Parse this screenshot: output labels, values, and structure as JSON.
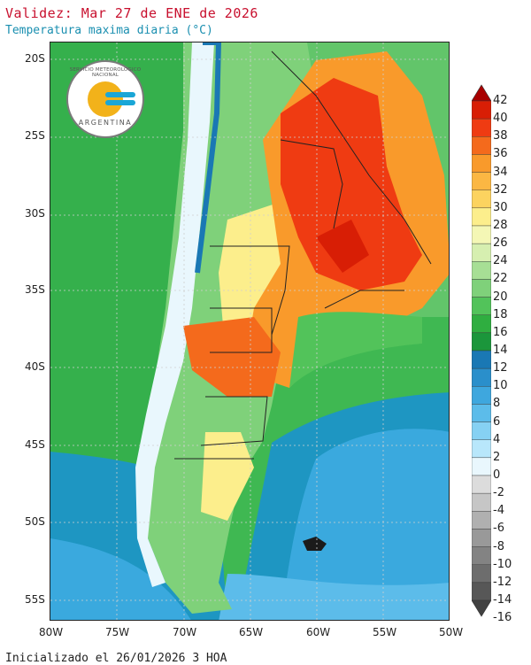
{
  "header": {
    "title": "Validez: Mar 27 de ENE de 2026",
    "subtitle": "Temperatura maxima diaria (°C)"
  },
  "footer": {
    "init_text": "Inicializado el 26/01/2026 3 HOA"
  },
  "logo": {
    "org_name": "SERVICIO METEOROLOGICO NACIONAL",
    "country": "ARGENTINA"
  },
  "map": {
    "lat_labels": [
      "20S",
      "25S",
      "30S",
      "35S",
      "40S",
      "45S",
      "50S",
      "55S"
    ],
    "lon_labels": [
      "80W",
      "75W",
      "70W",
      "65W",
      "60W",
      "55W",
      "50W"
    ]
  },
  "colorbar": {
    "labels": [
      "42",
      "40",
      "38",
      "36",
      "34",
      "32",
      "30",
      "28",
      "26",
      "24",
      "22",
      "20",
      "18",
      "16",
      "14",
      "12",
      "10",
      "8",
      "6",
      "4",
      "2",
      "0",
      "-2",
      "-4",
      "-6",
      "-8",
      "-10",
      "-12",
      "-14",
      "-16"
    ],
    "colors": [
      "#a80000",
      "#d81e05",
      "#ef3b12",
      "#f46a1c",
      "#f99a2b",
      "#fbb743",
      "#fcd35f",
      "#fcee8c",
      "#f4f7b5",
      "#d6efb0",
      "#a7df95",
      "#7fd17a",
      "#52c35a",
      "#2fae40",
      "#1b963b",
      "#1a78b4",
      "#2a8fcb",
      "#3ea7de",
      "#5cbcea",
      "#86d1f3",
      "#b8e7fb",
      "#e9f7fd",
      "#dcdcdc",
      "#c6c6c6",
      "#b0b0b0",
      "#999999",
      "#838383",
      "#6d6d6d",
      "#575757",
      "#414141"
    ]
  }
}
